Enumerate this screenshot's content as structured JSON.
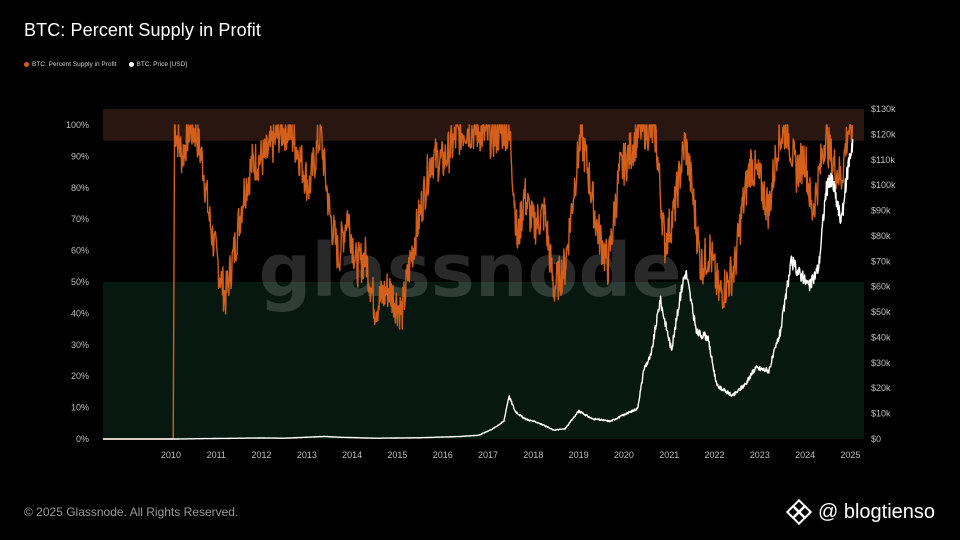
{
  "title": "BTC: Percent Supply in Profit",
  "legend": [
    {
      "label": "BTC: Percent Supply in Profit",
      "color": "#d35f1a"
    },
    {
      "label": "BTC: Price [USD]",
      "color": "#ffffff"
    }
  ],
  "watermark": "glassnode",
  "footer": "© 2025 Glassnode. All Rights Reserved.",
  "brand": {
    "handle": "@ blogtienso",
    "icon": "binance-diamond-icon"
  },
  "colors": {
    "background": "#000000",
    "supply_line": "#d35f1a",
    "price_line": "#ffffff",
    "upper_band": "#2a1610",
    "lower_band": "#06180f",
    "tick_text": "#bdbdbd"
  },
  "chart_data": {
    "type": "line",
    "title": "BTC: Percent Supply in Profit",
    "x_ticks": [
      "2010",
      "2011",
      "2012",
      "2013",
      "2014",
      "2015",
      "2016",
      "2017",
      "2018",
      "2019",
      "2020",
      "2021",
      "2022",
      "2023",
      "2024",
      "2025"
    ],
    "x_range": [
      2009.0,
      2025.8
    ],
    "y_left": {
      "range": [
        0,
        100
      ],
      "ticks": [
        "0%",
        "10%",
        "20%",
        "30%",
        "40%",
        "50%",
        "60%",
        "70%",
        "80%",
        "90%",
        "100%"
      ]
    },
    "y_right": {
      "range": [
        0,
        130000
      ],
      "ticks": [
        "$0",
        "$10k",
        "$20k",
        "$30k",
        "$40k",
        "$50k",
        "$60k",
        "$70k",
        "$80k",
        "$90k",
        "$100k",
        "$110k",
        "$120k",
        "$130k"
      ]
    },
    "bands": [
      {
        "from": 95,
        "to": 100,
        "axis": "left"
      },
      {
        "from": 0,
        "to": 50,
        "axis": "left"
      }
    ],
    "series": [
      {
        "name": "BTC: Percent Supply in Profit",
        "axis": "left",
        "x": [
          2009.0,
          2010.55,
          2010.58,
          2010.75,
          2010.9,
          2011.05,
          2011.2,
          2011.35,
          2011.5,
          2011.7,
          2011.9,
          2012.1,
          2012.3,
          2012.6,
          2012.9,
          2013.1,
          2013.3,
          2013.55,
          2013.8,
          2014.0,
          2014.2,
          2014.4,
          2014.6,
          2014.8,
          2015.0,
          2015.3,
          2015.6,
          2015.8,
          2016.0,
          2016.25,
          2016.5,
          2016.8,
          2017.0,
          2017.3,
          2017.6,
          2017.9,
          2018.0,
          2018.15,
          2018.3,
          2018.5,
          2018.75,
          2018.95,
          2019.2,
          2019.4,
          2019.55,
          2019.7,
          2019.9,
          2020.15,
          2020.4,
          2020.6,
          2020.85,
          2021.0,
          2021.2,
          2021.4,
          2021.6,
          2021.85,
          2022.0,
          2022.2,
          2022.4,
          2022.6,
          2022.8,
          2022.95,
          2023.1,
          2023.3,
          2023.5,
          2023.7,
          2023.9,
          2024.1,
          2024.3,
          2024.5,
          2024.65,
          2024.8,
          2024.95,
          2025.1,
          2025.3,
          2025.45,
          2025.55
        ],
        "y": [
          0,
          0,
          100,
          90,
          99,
          98,
          88,
          70,
          58,
          45,
          60,
          78,
          88,
          90,
          98,
          99,
          92,
          80,
          98,
          72,
          58,
          72,
          55,
          58,
          42,
          48,
          40,
          58,
          72,
          90,
          88,
          96,
          99,
          98,
          96,
          99,
          94,
          62,
          78,
          68,
          72,
          48,
          55,
          80,
          97,
          86,
          68,
          55,
          85,
          90,
          99,
          99,
          97,
          62,
          72,
          95,
          80,
          55,
          60,
          46,
          50,
          55,
          72,
          88,
          82,
          73,
          95,
          99,
          85,
          90,
          72,
          83,
          97,
          88,
          83,
          99,
          97
        ]
      },
      {
        "name": "BTC: Price [USD]",
        "axis": "right",
        "x": [
          2009.0,
          2010.6,
          2011.5,
          2012.5,
          2013.0,
          2013.9,
          2014.2,
          2015.0,
          2016.0,
          2016.9,
          2017.3,
          2017.6,
          2017.85,
          2017.96,
          2018.1,
          2018.3,
          2018.6,
          2018.95,
          2019.2,
          2019.5,
          2019.8,
          2020.2,
          2020.5,
          2020.8,
          2020.95,
          2021.1,
          2021.3,
          2021.55,
          2021.8,
          2021.87,
          2022.1,
          2022.35,
          2022.55,
          2022.9,
          2023.2,
          2023.4,
          2023.7,
          2023.95,
          2024.2,
          2024.35,
          2024.6,
          2024.8,
          2024.96,
          2025.1,
          2025.3,
          2025.45,
          2025.55
        ],
        "y": [
          0,
          0,
          200,
          400,
          300,
          1000,
          700,
          300,
          500,
          1000,
          1500,
          4000,
          7000,
          17000,
          11000,
          8000,
          6500,
          3500,
          4000,
          11000,
          8000,
          7000,
          9500,
          12000,
          28000,
          33000,
          55000,
          35000,
          62000,
          66000,
          42000,
          40000,
          21000,
          17000,
          22000,
          28000,
          27000,
          42000,
          70000,
          66000,
          60000,
          68000,
          98000,
          102000,
          85000,
          108000,
          118000
        ]
      }
    ]
  }
}
